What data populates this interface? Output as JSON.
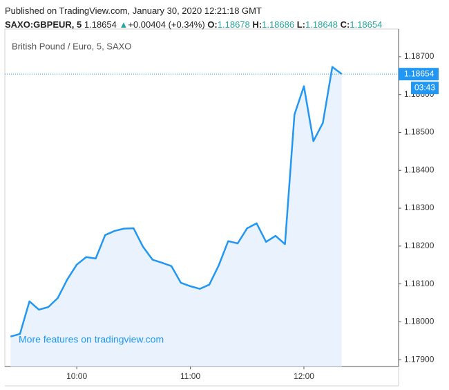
{
  "header": {
    "published": "Published on TradingView.com, January 30, 2020 12:21:18 GMT",
    "symbol": "SAXO:GBPEUR, 5",
    "price": "1.18654",
    "arrow": "▲",
    "change": "+0.00404 (+0.34%)",
    "o_label": "O:",
    "o": "1.18678",
    "h_label": "H:",
    "h": "1.18686",
    "l_label": "L:",
    "l": "1.18648",
    "c_label": "C:",
    "c": "1.18654"
  },
  "chart_data": {
    "type": "line",
    "legend": "British Pound / Euro, 5, SAXO",
    "watermark": "More features on tradingview.com",
    "color": "#2196f3",
    "area_color": "#eaf3fd",
    "x": [
      565,
      570,
      575,
      580,
      585,
      590,
      595,
      600,
      605,
      610,
      615,
      620,
      625,
      630,
      635,
      640,
      645,
      650,
      655,
      660,
      665,
      670,
      675,
      680,
      685,
      690,
      695,
      700,
      705,
      710,
      715,
      720,
      725,
      730,
      735,
      740
    ],
    "values": [
      1.17961,
      1.17968,
      1.18054,
      1.18032,
      1.18039,
      1.18063,
      1.18112,
      1.18151,
      1.18171,
      1.18167,
      1.18229,
      1.1824,
      1.18246,
      1.18247,
      1.18198,
      1.18164,
      1.18156,
      1.18147,
      1.18103,
      1.18094,
      1.18087,
      1.18098,
      1.18149,
      1.18213,
      1.18207,
      1.18247,
      1.1826,
      1.18211,
      1.18227,
      1.18205,
      1.18547,
      1.18622,
      1.18477,
      1.18525,
      1.18673,
      1.18654
    ],
    "xlim": [
      562,
      770
    ],
    "xticks": [
      {
        "value": 600,
        "label": "10:00"
      },
      {
        "value": 660,
        "label": "11:00"
      },
      {
        "value": 720,
        "label": "12:00"
      }
    ],
    "ylim": [
      1.17882,
      1.18773
    ],
    "yticks": [
      {
        "value": 1.179,
        "label": "1.17900"
      },
      {
        "value": 1.18,
        "label": "1.18000"
      },
      {
        "value": 1.181,
        "label": "1.18100"
      },
      {
        "value": 1.182,
        "label": "1.18200"
      },
      {
        "value": 1.183,
        "label": "1.18300"
      },
      {
        "value": 1.184,
        "label": "1.18400"
      },
      {
        "value": 1.185,
        "label": "1.18500"
      },
      {
        "value": 1.186,
        "label": "1.18600"
      },
      {
        "value": 1.187,
        "label": "1.18700"
      }
    ],
    "last_price": 1.18654,
    "countdown": "03:43"
  }
}
